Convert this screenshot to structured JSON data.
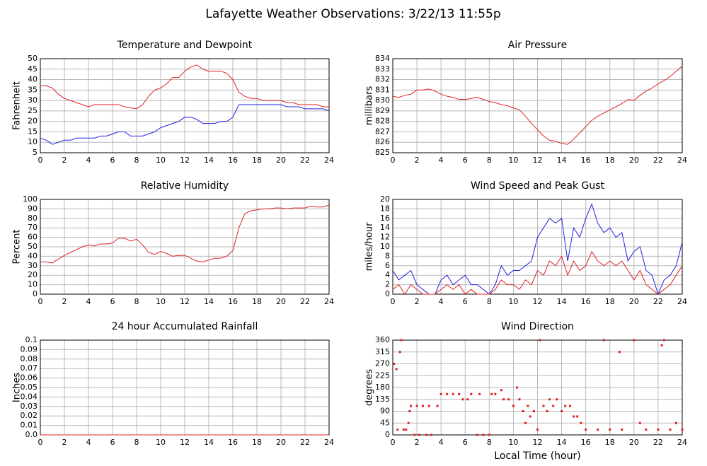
{
  "title": "Lafayette Weather Observations: 3/22/13 11:55p",
  "chart_data": [
    {
      "type": "line",
      "title": "Temperature and Dewpoint",
      "ylabel": "Fahrenheit",
      "x": [
        0,
        0.5,
        1,
        1.5,
        2,
        2.5,
        3,
        3.5,
        4,
        4.5,
        5,
        5.5,
        6,
        6.5,
        7,
        7.5,
        8,
        8.5,
        9,
        9.5,
        10,
        10.5,
        11,
        11.5,
        12,
        12.5,
        13,
        13.5,
        14,
        14.5,
        15,
        15.5,
        16,
        16.5,
        17,
        17.5,
        18,
        18.5,
        19,
        19.5,
        20,
        20.5,
        21,
        21.5,
        22,
        22.5,
        23,
        23.5,
        24
      ],
      "series": [
        {
          "name": "Temperature",
          "color": "#e02020",
          "values": [
            37,
            37,
            36,
            33,
            31,
            30,
            29,
            28,
            27,
            28,
            28,
            28,
            28,
            28,
            27,
            26.5,
            26,
            28,
            32,
            35,
            36,
            38,
            41,
            41,
            44,
            46,
            47,
            45,
            44,
            44,
            44,
            43,
            40,
            34,
            32,
            31,
            31,
            30,
            30,
            30,
            30,
            29,
            29,
            28,
            28,
            28,
            28,
            27,
            27
          ]
        },
        {
          "name": "Dewpoint",
          "color": "#2020e0",
          "values": [
            12,
            11,
            9,
            10,
            11,
            11,
            12,
            12,
            12,
            12,
            13,
            13,
            14,
            15,
            15,
            13,
            13,
            13,
            14,
            15,
            17,
            18,
            19,
            20,
            22,
            22,
            21,
            19,
            19,
            19,
            20,
            20,
            22,
            28,
            28,
            28,
            28,
            28,
            28,
            28,
            28,
            27,
            27,
            27,
            26,
            26,
            26,
            26,
            25
          ]
        }
      ],
      "xlim": [
        0,
        24
      ],
      "xticks": [
        0,
        2,
        4,
        6,
        8,
        10,
        12,
        14,
        16,
        18,
        20,
        22,
        24
      ],
      "ylim": [
        5,
        50
      ],
      "yticks": [
        5,
        10,
        15,
        20,
        25,
        30,
        35,
        40,
        45,
        50
      ],
      "grid": true
    },
    {
      "type": "line",
      "title": "Air Pressure",
      "ylabel": "millibars",
      "x": [
        0,
        0.5,
        1,
        1.5,
        2,
        2.5,
        3,
        3.5,
        4,
        4.5,
        5,
        5.5,
        6,
        6.5,
        7,
        7.5,
        8,
        8.5,
        9,
        9.5,
        10,
        10.5,
        11,
        11.5,
        12,
        12.5,
        13,
        13.5,
        14,
        14.5,
        15,
        15.5,
        16,
        16.5,
        17,
        17.5,
        18,
        18.5,
        19,
        19.5,
        20,
        20.5,
        21,
        21.5,
        22,
        22.5,
        23,
        23.5,
        24
      ],
      "series": [
        {
          "name": "Pressure",
          "color": "#e02020",
          "values": [
            830.4,
            830.3,
            830.5,
            830.6,
            831,
            831,
            831.1,
            830.9,
            830.6,
            830.4,
            830.3,
            830.1,
            830.1,
            830.2,
            830.3,
            830.1,
            829.9,
            829.8,
            829.6,
            829.5,
            829.3,
            829.1,
            828.5,
            827.8,
            827.2,
            826.6,
            826.2,
            826.1,
            825.9,
            825.8,
            826.3,
            826.9,
            827.5,
            828.1,
            828.5,
            828.8,
            829.1,
            829.4,
            829.7,
            830.1,
            830,
            830.5,
            830.9,
            831.2,
            831.6,
            831.9,
            832.3,
            832.8,
            833.3
          ]
        }
      ],
      "xlim": [
        0,
        24
      ],
      "xticks": [
        0,
        2,
        4,
        6,
        8,
        10,
        12,
        14,
        16,
        18,
        20,
        22,
        24
      ],
      "ylim": [
        825,
        834
      ],
      "yticks": [
        825,
        826,
        827,
        828,
        829,
        830,
        831,
        832,
        833,
        834
      ],
      "grid": true
    },
    {
      "type": "line",
      "title": "Relative Humidity",
      "ylabel": "Percent",
      "x": [
        0,
        0.5,
        1,
        1.5,
        2,
        2.5,
        3,
        3.5,
        4,
        4.5,
        5,
        5.5,
        6,
        6.5,
        7,
        7.5,
        8,
        8.5,
        9,
        9.5,
        10,
        10.5,
        11,
        11.5,
        12,
        12.5,
        13,
        13.5,
        14,
        14.5,
        15,
        15.5,
        16,
        16.5,
        17,
        17.5,
        18,
        18.5,
        19,
        19.5,
        20,
        20.5,
        21,
        21.5,
        22,
        22.5,
        23,
        23.5,
        24
      ],
      "series": [
        {
          "name": "Humidity",
          "color": "#e02020",
          "values": [
            34,
            34,
            33,
            37,
            41,
            44,
            47,
            50,
            52,
            51,
            53,
            53,
            54,
            59,
            59,
            56,
            58,
            52,
            44,
            42,
            45,
            43,
            40,
            41,
            41,
            38,
            35,
            34,
            36,
            38,
            38,
            40,
            46,
            70,
            85,
            88,
            89,
            90,
            90,
            91,
            91,
            90,
            91,
            91,
            91,
            93,
            92,
            92,
            94
          ]
        }
      ],
      "xlim": [
        0,
        24
      ],
      "xticks": [
        0,
        2,
        4,
        6,
        8,
        10,
        12,
        14,
        16,
        18,
        20,
        22,
        24
      ],
      "ylim": [
        0,
        100
      ],
      "yticks": [
        0,
        10,
        20,
        30,
        40,
        50,
        60,
        70,
        80,
        90,
        100
      ],
      "grid": true
    },
    {
      "type": "line",
      "title": "Wind Speed and Peak Gust",
      "ylabel": "miles/hour",
      "x": [
        0,
        0.5,
        1,
        1.5,
        2,
        2.5,
        3,
        3.5,
        4,
        4.5,
        5,
        5.5,
        6,
        6.5,
        7,
        7.5,
        8,
        8.5,
        9,
        9.5,
        10,
        10.5,
        11,
        11.5,
        12,
        12.5,
        13,
        13.5,
        14,
        14.5,
        15,
        15.5,
        16,
        16.5,
        17,
        17.5,
        18,
        18.5,
        19,
        19.5,
        20,
        20.5,
        21,
        21.5,
        22,
        22.5,
        23,
        23.5,
        24
      ],
      "series": [
        {
          "name": "Peak Gust",
          "color": "#2020e0",
          "values": [
            5,
            3,
            4,
            5,
            2,
            1,
            0,
            0,
            3,
            4,
            2,
            3,
            4,
            2,
            2,
            1,
            0,
            2,
            6,
            4,
            5,
            5,
            6,
            7,
            12,
            14,
            16,
            15,
            16,
            7,
            14,
            12,
            16,
            19,
            15,
            13,
            14,
            12,
            13,
            7,
            9,
            10,
            5,
            4,
            0,
            3,
            4,
            6,
            11
          ]
        },
        {
          "name": "Wind Speed",
          "color": "#e02020",
          "values": [
            1,
            2,
            0,
            2,
            1,
            0,
            0,
            0,
            1,
            2,
            1,
            2,
            0,
            1,
            0,
            0,
            0,
            1,
            3,
            2,
            2,
            1,
            3,
            2,
            5,
            4,
            7,
            6,
            8,
            4,
            7,
            5,
            6,
            9,
            7,
            6,
            7,
            6,
            7,
            5,
            3,
            5,
            2,
            1,
            0,
            1,
            2,
            4,
            6
          ]
        }
      ],
      "xlim": [
        0,
        24
      ],
      "xticks": [
        0,
        2,
        4,
        6,
        8,
        10,
        12,
        14,
        16,
        18,
        20,
        22,
        24
      ],
      "ylim": [
        0,
        20
      ],
      "yticks": [
        0,
        2,
        4,
        6,
        8,
        10,
        12,
        14,
        16,
        18,
        20
      ],
      "grid": true
    },
    {
      "type": "line",
      "title": "24 hour Accumulated Rainfall",
      "ylabel": "Inches",
      "x": [
        0,
        24
      ],
      "series": [
        {
          "name": "Rainfall",
          "color": "#e02020",
          "values": [
            0,
            0
          ]
        }
      ],
      "xlim": [
        0,
        24
      ],
      "xticks": [
        0,
        2,
        4,
        6,
        8,
        10,
        12,
        14,
        16,
        18,
        20,
        22,
        24
      ],
      "ylim": [
        0,
        0.1
      ],
      "yticks": [
        {
          "value": 0,
          "label": "0.0"
        },
        0.01,
        0.02,
        0.03,
        0.04,
        0.05,
        0.06,
        0.07,
        0.08,
        0.09,
        0.1
      ],
      "grid": true
    },
    {
      "type": "scatter",
      "title": "Wind Direction",
      "ylabel": "degrees",
      "xlabel": "Local Time (hour)",
      "x": [
        0.1,
        0.3,
        0.4,
        0.6,
        0.7,
        0.9,
        1.1,
        1.3,
        1.4,
        1.5,
        2,
        2.5,
        3,
        1.8,
        2.2,
        2.8,
        3.2,
        3.7,
        4,
        4.5,
        5,
        5.5,
        5.8,
        6.2,
        6.5,
        7,
        7.5,
        8,
        7.2,
        8.2,
        8.5,
        9,
        9.2,
        9.6,
        10,
        10.3,
        10.5,
        10.8,
        11,
        11.2,
        11.4,
        11.7,
        12,
        12.2,
        12.5,
        12.8,
        13,
        13.3,
        13.6,
        14,
        14.3,
        14.7,
        15,
        15.3,
        15.6,
        16,
        17,
        17.5,
        18,
        18.8,
        19,
        20,
        20.5,
        21,
        22,
        22.3,
        22.5,
        23,
        23.5,
        24
      ],
      "series": [
        {
          "name": "Direction",
          "color": "#e02020",
          "values": [
            270,
            250,
            20,
            315,
            360,
            20,
            20,
            45,
            90,
            110,
            110,
            110,
            110,
            0,
            0,
            0,
            0,
            110,
            155,
            155,
            155,
            155,
            135,
            135,
            155,
            0,
            0,
            0,
            155,
            155,
            155,
            170,
            135,
            135,
            110,
            180,
            135,
            90,
            45,
            110,
            70,
            90,
            20,
            360,
            110,
            90,
            135,
            110,
            135,
            90,
            110,
            110,
            70,
            70,
            45,
            20,
            20,
            360,
            20,
            315,
            20,
            360,
            45,
            20,
            20,
            340,
            360,
            20,
            45,
            20
          ]
        }
      ],
      "xlim": [
        0,
        24
      ],
      "xticks": [
        0,
        2,
        4,
        6,
        8,
        10,
        12,
        14,
        16,
        18,
        20,
        22,
        24
      ],
      "ylim": [
        0,
        360
      ],
      "yticks": [
        0,
        45,
        90,
        135,
        180,
        225,
        270,
        315,
        360
      ],
      "grid": true
    }
  ]
}
